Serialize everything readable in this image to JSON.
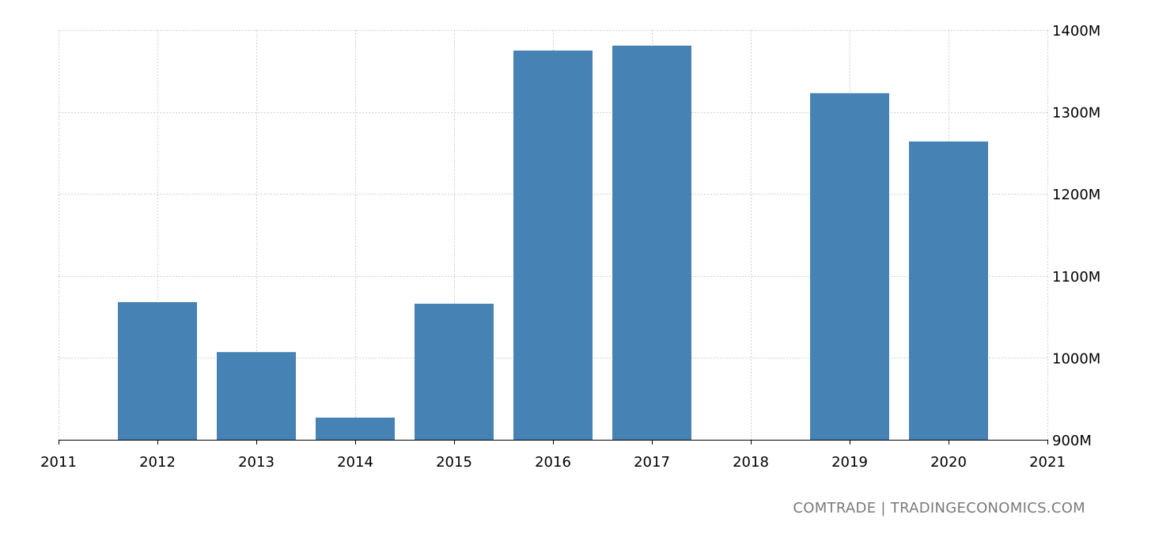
{
  "chart_data": {
    "type": "bar",
    "categories": [
      "2012",
      "2013",
      "2014",
      "2015",
      "2016",
      "2017",
      "2019",
      "2020"
    ],
    "x": [
      2012,
      2013,
      2014,
      2015,
      2016,
      2017,
      2019,
      2020
    ],
    "values": [
      1068,
      1007,
      927,
      1066,
      1375,
      1381,
      1323,
      1264
    ],
    "x_ticks": [
      "2011",
      "2012",
      "2013",
      "2014",
      "2015",
      "2016",
      "2017",
      "2018",
      "2019",
      "2020",
      "2021"
    ],
    "xlim": [
      2011,
      2021
    ],
    "y_ticks": [
      900,
      1000,
      1100,
      1200,
      1300,
      1400
    ],
    "y_tick_labels": [
      "900M",
      "1000M",
      "1100M",
      "1200M",
      "1300M",
      "1400M"
    ],
    "ylim": [
      900,
      1400
    ],
    "title": "",
    "xlabel": "",
    "ylabel": "",
    "grid": true,
    "bar_color": "#4682b4"
  },
  "footer": {
    "source": "COMTRADE | TRADINGECONOMICS.COM"
  }
}
